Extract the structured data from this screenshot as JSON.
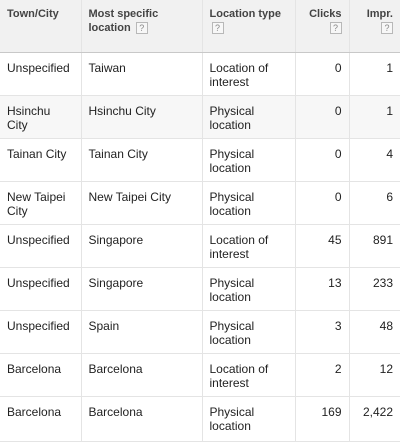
{
  "table": {
    "headers": {
      "town_city": "Town/City",
      "most_specific_location": "Most specific location",
      "location_type": "Location type",
      "clicks": "Clicks",
      "impr": "Impr.",
      "help_glyph": "?"
    },
    "rows": [
      {
        "town_city": "Unspecified",
        "most_specific_location": "Taiwan",
        "location_type": "Location of interest",
        "clicks": "0",
        "impr": "1"
      },
      {
        "town_city": "Hsinchu City",
        "most_specific_location": "Hsinchu City",
        "location_type": "Physical location",
        "clicks": "0",
        "impr": "1"
      },
      {
        "town_city": "Tainan City",
        "most_specific_location": "Tainan City",
        "location_type": "Physical location",
        "clicks": "0",
        "impr": "4"
      },
      {
        "town_city": "New Taipei City",
        "most_specific_location": "New Taipei City",
        "location_type": "Physical location",
        "clicks": "0",
        "impr": "6"
      },
      {
        "town_city": "Unspecified",
        "most_specific_location": "Singapore",
        "location_type": "Location of interest",
        "clicks": "45",
        "impr": "891"
      },
      {
        "town_city": "Unspecified",
        "most_specific_location": "Singapore",
        "location_type": "Physical location",
        "clicks": "13",
        "impr": "233"
      },
      {
        "town_city": "Unspecified",
        "most_specific_location": "Spain",
        "location_type": "Physical location",
        "clicks": "3",
        "impr": "48"
      },
      {
        "town_city": "Barcelona",
        "most_specific_location": "Barcelona",
        "location_type": "Location of interest",
        "clicks": "2",
        "impr": "12"
      },
      {
        "town_city": "Barcelona",
        "most_specific_location": "Barcelona",
        "location_type": "Physical location",
        "clicks": "169",
        "impr": "2,422"
      }
    ]
  }
}
